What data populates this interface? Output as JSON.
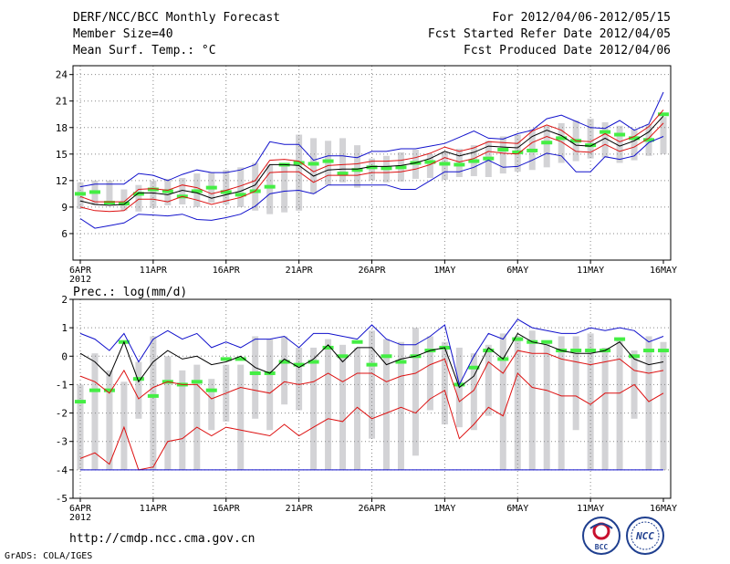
{
  "header": {
    "title": "DERF/NCC/BCC Monthly Forecast",
    "member_size": "Member Size=40",
    "variable": "Mean Surf. Temp.: °C",
    "period": "For 2012/04/06-2012/05/15",
    "started": "Fcst Started Refer Date 2012/04/05",
    "produced": "Fcst Produced Date 2012/04/06"
  },
  "footer": {
    "url": "http://cmdp.ncc.cma.gov.cn",
    "credit": "GrADS: COLA/IGES",
    "logo_left_text": "BCC",
    "logo_right_text": "NCC"
  },
  "colors": {
    "box": "#d3d3d6",
    "green": "#44ee44",
    "blue": "#1111cc",
    "red": "#dd1111",
    "black": "#000000",
    "grid": "#888888"
  },
  "chart_data": [
    {
      "type": "line",
      "name": "temperature",
      "title": "Mean Surf. Temp.: °C",
      "ylim": [
        3,
        25
      ],
      "yticks": [
        6,
        9,
        12,
        15,
        18,
        21,
        24
      ],
      "xlim": [
        -0.5,
        40.5
      ],
      "xticks": [
        {
          "label": "6APR",
          "sub": "2012",
          "day": 0
        },
        {
          "label": "11APR",
          "day": 5
        },
        {
          "label": "16APR",
          "day": 10
        },
        {
          "label": "21APR",
          "day": 15
        },
        {
          "label": "26APR",
          "day": 20
        },
        {
          "label": "1MAY",
          "day": 25
        },
        {
          "label": "6MAY",
          "day": 30
        },
        {
          "label": "11MAY",
          "day": 35
        },
        {
          "label": "16MAY",
          "day": 40
        }
      ],
      "box_low": [
        8.8,
        9.2,
        9.5,
        8.6,
        8.5,
        8.9,
        9.2,
        9.3,
        9.0,
        9.5,
        9.3,
        9.0,
        8.6,
        8.2,
        8.4,
        8.6,
        10.5,
        11.5,
        11.8,
        11.2,
        12.0,
        11.8,
        11.9,
        12.2,
        12.3,
        12.1,
        12.4,
        12.5,
        12.4,
        12.8,
        13.0,
        13.2,
        13.5,
        14.0,
        14.2,
        14.5,
        14.6,
        14.0,
        14.3,
        14.8,
        15.0
      ],
      "box_high": [
        11.8,
        12.0,
        12.0,
        11.0,
        11.5,
        12.0,
        12.2,
        12.3,
        12.8,
        12.9,
        13.2,
        13.5,
        14.0,
        13.8,
        13.9,
        17.2,
        16.8,
        16.5,
        16.8,
        16.0,
        14.5,
        14.8,
        15.2,
        15.5,
        15.0,
        15.3,
        15.6,
        16.0,
        16.5,
        17.0,
        17.2,
        17.8,
        18.2,
        18.5,
        18.8,
        19.0,
        18.6,
        18.2,
        17.8,
        18.4,
        19.2
      ],
      "green": [
        10.5,
        10.7,
        9.5,
        9.4,
        10.5,
        11.0,
        10.8,
        10.2,
        10.8,
        11.2,
        10.7,
        10.4,
        10.8,
        11.3,
        13.8,
        14.0,
        13.9,
        14.2,
        12.8,
        13.2,
        13.5,
        13.4,
        13.5,
        14.0,
        14.1,
        13.9,
        13.8,
        14.2,
        14.5,
        15.5,
        15.2,
        15.4,
        16.3,
        16.8,
        16.5,
        16.0,
        17.5,
        17.2,
        16.8,
        16.6,
        19.5
      ],
      "series": [
        {
          "name": "upper",
          "color": "blue",
          "values": [
            11.3,
            11.6,
            11.6,
            11.6,
            12.8,
            12.6,
            12.0,
            12.7,
            13.2,
            12.9,
            12.9,
            13.2,
            13.8,
            16.4,
            16.1,
            16.1,
            14.3,
            14.8,
            14.8,
            14.6,
            15.3,
            15.3,
            15.6,
            15.6,
            15.9,
            16.2,
            16.9,
            17.6,
            16.8,
            16.7,
            17.3,
            17.7,
            19.0,
            19.4,
            18.7,
            18.0,
            17.9,
            18.8,
            17.7,
            18.4,
            22.0
          ]
        },
        {
          "name": "upper2",
          "color": "red",
          "values": [
            10.2,
            9.6,
            9.6,
            9.6,
            11.0,
            11.1,
            10.9,
            11.5,
            11.2,
            10.5,
            10.9,
            11.4,
            12.0,
            14.3,
            14.4,
            14.2,
            13.0,
            13.7,
            13.8,
            13.9,
            14.2,
            14.2,
            14.3,
            14.6,
            15.1,
            15.8,
            15.3,
            15.7,
            16.4,
            16.3,
            16.2,
            17.6,
            18.3,
            17.7,
            16.5,
            16.4,
            17.3,
            16.4,
            17.0,
            18.1,
            20.0
          ]
        },
        {
          "name": "mean",
          "color": "black",
          "values": [
            9.7,
            9.3,
            9.2,
            9.3,
            10.6,
            10.6,
            10.4,
            10.9,
            10.6,
            10.0,
            10.4,
            10.8,
            11.5,
            13.8,
            13.8,
            13.7,
            12.5,
            13.2,
            13.3,
            13.3,
            13.6,
            13.6,
            13.7,
            14.0,
            14.5,
            15.3,
            14.8,
            15.2,
            15.9,
            15.8,
            15.7,
            17.0,
            17.7,
            17.1,
            16.0,
            15.9,
            16.8,
            15.9,
            16.5,
            17.5,
            19.3
          ]
        },
        {
          "name": "lower2",
          "color": "red",
          "values": [
            9.0,
            8.6,
            8.5,
            8.6,
            9.9,
            9.9,
            9.6,
            10.2,
            9.8,
            9.3,
            9.7,
            10.1,
            10.8,
            12.9,
            13.0,
            13.0,
            11.8,
            12.6,
            12.6,
            12.6,
            12.9,
            12.9,
            13.0,
            13.3,
            13.8,
            14.6,
            14.1,
            14.5,
            15.3,
            15.1,
            15.0,
            16.3,
            17.0,
            16.4,
            15.3,
            15.2,
            16.1,
            15.3,
            15.8,
            16.8,
            18.5
          ]
        },
        {
          "name": "lower",
          "color": "blue",
          "values": [
            7.7,
            6.6,
            6.9,
            7.2,
            8.2,
            8.1,
            8.0,
            8.2,
            7.6,
            7.5,
            7.8,
            8.2,
            9.1,
            10.5,
            10.8,
            10.9,
            10.5,
            11.5,
            11.5,
            11.5,
            11.5,
            11.5,
            11.0,
            11.0,
            12.0,
            13.0,
            13.0,
            13.5,
            14.3,
            13.5,
            13.6,
            14.3,
            15.1,
            14.8,
            13.0,
            13.0,
            14.7,
            14.4,
            14.8,
            16.3,
            17.0
          ]
        }
      ]
    },
    {
      "type": "line",
      "name": "precipitation",
      "title": "Prec.: log(mm/d)",
      "ylim": [
        -5,
        2
      ],
      "yticks": [
        -5,
        -4,
        -3,
        -2,
        -1,
        0,
        1,
        2
      ],
      "xlim": [
        -0.5,
        40.5
      ],
      "xticks": [
        {
          "label": "6APR",
          "sub": "2012",
          "day": 0
        },
        {
          "label": "11APR",
          "day": 5
        },
        {
          "label": "16APR",
          "day": 10
        },
        {
          "label": "21APR",
          "day": 15
        },
        {
          "label": "26APR",
          "day": 20
        },
        {
          "label": "1MAY",
          "day": 25
        },
        {
          "label": "6MAY",
          "day": 30
        },
        {
          "label": "11MAY",
          "day": 35
        },
        {
          "label": "16MAY",
          "day": 40
        }
      ],
      "box_low": [
        -4.0,
        -4.0,
        -4.0,
        -4.0,
        -2.2,
        -4.0,
        -4.0,
        -4.0,
        -4.0,
        -2.6,
        -2.3,
        -4.0,
        -2.2,
        -2.6,
        -1.7,
        -1.9,
        -4.0,
        -4.0,
        -4.0,
        -4.0,
        -2.9,
        -4.0,
        -4.0,
        -3.5,
        -1.9,
        -2.4,
        -2.5,
        -2.6,
        -2.1,
        -4.0,
        -4.0,
        -4.0,
        -4.0,
        -4.0,
        -2.6,
        -4.0,
        -4.0,
        -4.0,
        -2.2,
        -4.0,
        -4.0
      ],
      "box_high": [
        -1.0,
        0.1,
        -0.5,
        -0.9,
        -0.2,
        0.7,
        0.0,
        -0.5,
        -0.3,
        -0.8,
        -0.3,
        -0.3,
        0.7,
        0.6,
        0.7,
        0.3,
        0.3,
        0.6,
        0.4,
        0.3,
        0.9,
        0.6,
        0.5,
        1.0,
        0.7,
        0.5,
        0.3,
        0.1,
        0.4,
        0.8,
        0.7,
        0.9,
        0.5,
        0.7,
        0.7,
        0.8,
        0.3,
        0.6,
        0.2,
        0.7,
        0.5
      ],
      "green": [
        -1.6,
        -1.2,
        -1.2,
        0.5,
        -0.8,
        -1.4,
        -0.9,
        -1.0,
        -0.9,
        -1.2,
        -0.1,
        -0.1,
        -0.6,
        -0.6,
        -0.2,
        -0.3,
        -0.2,
        0.3,
        0.0,
        0.5,
        -0.3,
        0.0,
        -0.2,
        0.0,
        0.2,
        0.3,
        -1.0,
        -0.4,
        0.2,
        -0.1,
        0.6,
        0.5,
        0.5,
        0.2,
        0.2,
        0.2,
        0.2,
        0.6,
        0.0,
        0.2,
        0.2
      ],
      "series": [
        {
          "name": "upper",
          "color": "blue",
          "values": [
            0.8,
            0.6,
            0.2,
            0.8,
            -0.2,
            0.6,
            0.9,
            0.6,
            0.8,
            0.3,
            0.5,
            0.3,
            0.6,
            0.6,
            0.7,
            0.3,
            0.8,
            0.8,
            0.7,
            0.6,
            1.1,
            0.6,
            0.4,
            0.4,
            0.7,
            1.1,
            -1.0,
            0.0,
            0.8,
            0.6,
            1.3,
            1.0,
            0.9,
            0.8,
            0.8,
            1.0,
            0.9,
            1.0,
            0.9,
            0.5,
            0.7
          ]
        },
        {
          "name": "mean",
          "color": "black",
          "values": [
            0.1,
            -0.2,
            -0.7,
            0.5,
            -0.9,
            -0.2,
            0.2,
            -0.1,
            0.0,
            -0.3,
            -0.2,
            0.0,
            -0.4,
            -0.6,
            -0.1,
            -0.4,
            -0.1,
            0.4,
            -0.2,
            0.3,
            0.3,
            -0.3,
            -0.1,
            0.0,
            0.2,
            0.3,
            -1.1,
            -0.7,
            0.3,
            -0.1,
            0.8,
            0.5,
            0.4,
            0.2,
            0.1,
            0.1,
            0.2,
            0.5,
            -0.1,
            -0.3,
            -0.2
          ]
        },
        {
          "name": "upper2",
          "color": "red",
          "values": [
            -0.7,
            -0.9,
            -1.3,
            -0.5,
            -1.5,
            -1.1,
            -0.9,
            -1.0,
            -1.0,
            -1.5,
            -1.3,
            -1.1,
            -1.2,
            -1.3,
            -0.9,
            -1.0,
            -0.9,
            -0.6,
            -0.9,
            -0.6,
            -0.6,
            -0.9,
            -0.7,
            -0.6,
            -0.3,
            -0.1,
            -1.6,
            -1.2,
            -0.2,
            -0.6,
            0.2,
            0.1,
            0.1,
            -0.1,
            -0.2,
            -0.3,
            -0.2,
            -0.1,
            -0.5,
            -0.6,
            -0.5
          ]
        },
        {
          "name": "lower2",
          "color": "red",
          "values": [
            -3.6,
            -3.4,
            -3.8,
            -2.5,
            -4.0,
            -3.9,
            -3.0,
            -2.9,
            -2.5,
            -2.8,
            -2.5,
            -2.6,
            -2.7,
            -2.8,
            -2.4,
            -2.8,
            -2.5,
            -2.2,
            -2.3,
            -1.8,
            -2.2,
            -2.0,
            -1.8,
            -2.0,
            -1.5,
            -1.2,
            -2.9,
            -2.4,
            -1.8,
            -2.1,
            -0.6,
            -1.1,
            -1.2,
            -1.4,
            -1.4,
            -1.7,
            -1.3,
            -1.3,
            -1.0,
            -1.6,
            -1.3
          ]
        },
        {
          "name": "lower",
          "color": "blue",
          "values": [
            -4.0,
            -4.0,
            -4.0,
            -4.0,
            -4.0,
            -4.0,
            -4.0,
            -4.0,
            -4.0,
            -4.0,
            -4.0,
            -4.0,
            -4.0,
            -4.0,
            -4.0,
            -4.0,
            -4.0,
            -4.0,
            -4.0,
            -4.0,
            -4.0,
            -4.0,
            -4.0,
            -4.0,
            -4.0,
            -4.0,
            -4.0,
            -4.0,
            -4.0,
            -4.0,
            -4.0,
            -4.0,
            -4.0,
            -4.0,
            -4.0,
            -4.0,
            -4.0,
            -4.0,
            -4.0,
            -4.0,
            -4.0
          ]
        }
      ]
    }
  ]
}
